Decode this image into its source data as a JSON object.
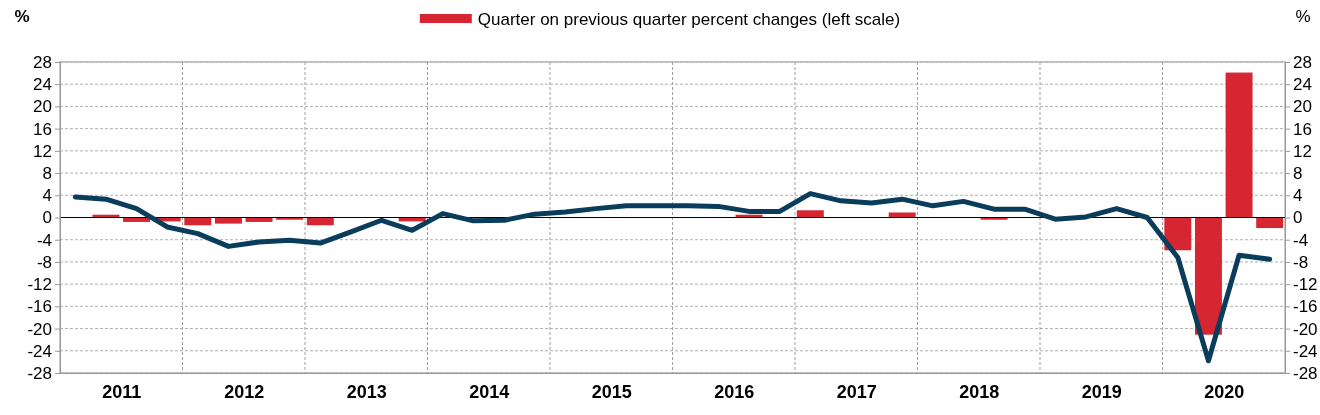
{
  "chart_data": {
    "type": "bar",
    "ylabel": "%",
    "y2label": "%",
    "x": [
      2011.125,
      2011.375,
      2011.625,
      2011.875,
      2012.125,
      2012.375,
      2012.625,
      2012.875,
      2013.125,
      2013.375,
      2013.625,
      2013.875,
      2014.125,
      2014.375,
      2014.625,
      2014.875,
      2015.125,
      2015.375,
      2015.625,
      2015.875,
      2016.125,
      2016.375,
      2016.625,
      2016.875,
      2017.125,
      2017.375,
      2017.625,
      2017.875,
      2018.125,
      2018.375,
      2018.625,
      2018.875,
      2019.125,
      2019.375,
      2019.625,
      2019.875,
      2020.125,
      2020.375,
      2020.625,
      2020.875
    ],
    "xlim": [
      2011,
      2021
    ],
    "xticks": [
      {
        "value": 2011.5,
        "label": "2011"
      },
      {
        "value": 2012,
        "label": null
      },
      {
        "value": 2012.5,
        "label": "2012"
      },
      {
        "value": 2013,
        "label": null
      },
      {
        "value": 2013.5,
        "label": "2013"
      },
      {
        "value": 2014,
        "label": null
      },
      {
        "value": 2014.5,
        "label": "2014"
      },
      {
        "value": 2015,
        "label": null
      },
      {
        "value": 2015.5,
        "label": "2015"
      },
      {
        "value": 2016,
        "label": null
      },
      {
        "value": 2016.5,
        "label": "2016"
      },
      {
        "value": 2017,
        "label": null
      },
      {
        "value": 2017.5,
        "label": "2017"
      },
      {
        "value": 2018,
        "label": null
      },
      {
        "value": 2018.5,
        "label": "2018"
      },
      {
        "value": 2019,
        "label": null
      },
      {
        "value": 2019.5,
        "label": "2019"
      },
      {
        "value": 2020,
        "label": null
      },
      {
        "value": 2020.5,
        "label": "2020"
      }
    ],
    "ylim": [
      -28,
      28
    ],
    "yticks": [
      -28,
      -24,
      -20,
      -16,
      -12,
      -8,
      -4,
      0,
      4,
      8,
      12,
      16,
      20,
      24,
      28
    ],
    "y2lim": [
      -28,
      28
    ],
    "y2ticks": [
      -28,
      -24,
      -20,
      -16,
      -12,
      -8,
      -4,
      0,
      4,
      8,
      12,
      16,
      20,
      24,
      28
    ],
    "grid": true,
    "legend": "top",
    "series": [
      {
        "name": "Quarter on previous quarter percent changes (left scale)",
        "color": "#d62631",
        "values": [
          0,
          0.5,
          -0.8,
          -0.7,
          -1.4,
          -1.1,
          -0.8,
          -0.4,
          -1.4,
          0,
          0,
          -0.7,
          0,
          0,
          0,
          0,
          0,
          0,
          0,
          0,
          0,
          0,
          0.5,
          0,
          1.3,
          0,
          0,
          0.9,
          0,
          0,
          -0.4,
          0,
          0,
          0,
          0,
          0,
          -5.9,
          -21.1,
          26.1,
          -1.9
        ]
      },
      {
        "type": "line",
        "color": "#0a3d5c",
        "line_style": "solid",
        "values": [
          3.7,
          3.3,
          1.6,
          -1.7,
          -2.9,
          -5.2,
          -4.4,
          -4.1,
          -4.6,
          -2.6,
          -0.5,
          -2.3,
          0.7,
          -0.6,
          -0.5,
          0.6,
          1.0,
          1.6,
          2.1,
          2.1,
          2.1,
          2.0,
          1.1,
          1.1,
          4.3,
          3.0,
          2.6,
          3.3,
          2.1,
          2.9,
          1.5,
          1.5,
          -0.3,
          0.1,
          1.6,
          0,
          -7.2,
          -25.8,
          -6.8,
          -7.5
        ]
      }
    ]
  }
}
